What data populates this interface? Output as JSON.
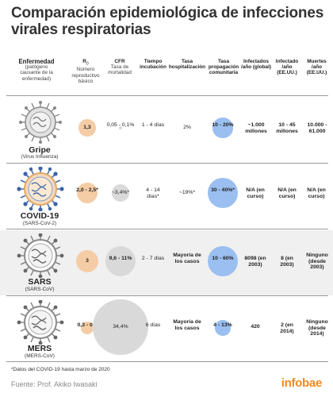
{
  "title": "Comparación epidemiológica de infecciones virales respiratorias",
  "headers": {
    "disease": "Enfermedad",
    "disease_sub": "(patógeno causante de la enfermedad)",
    "r0": "R",
    "r0_subscript": "0",
    "r0_sub": "Número reproductivo básico",
    "cfr": "CFR",
    "cfr_sub": "Tasa de mortalidad",
    "incubation": "Tiempo incubación",
    "hosp": "Tasa hospitalización",
    "community": "Tasa propagación comunitaria",
    "infected_global": "Infectados /año (global)",
    "infected_us": "Infectado /año (EE.UU.)",
    "deaths_us": "Muertes /año (EE.UU.)"
  },
  "rows": [
    {
      "name": "Gripe",
      "pathogen": "(Virus Influenza)",
      "r0": "1,3",
      "cfr": "0,05 - 0,1%",
      "incubation": "1 - 4 días",
      "hosp": "2%",
      "community": "10 - 20%",
      "infected_global": "~1.000 millones",
      "infected_us": "10 - 45 millones",
      "deaths_us": "10.000 - 61.000",
      "r0_value": 1.3,
      "cfr_value": 0.075,
      "community_value": 15
    },
    {
      "name": "COVID-19",
      "pathogen": "(SARS-CoV-2)",
      "r0": "2,0 - 2,5*",
      "cfr": "~3,4%*",
      "incubation": "4 - 14 días*",
      "hosp": "~19%*",
      "community": "30 - 40%*",
      "infected_global": "N/A (en curso)",
      "infected_us": "N/A (en curso)",
      "deaths_us": "N/A (en curso)",
      "r0_value": 2.25,
      "cfr_value": 3.4,
      "community_value": 35
    },
    {
      "name": "SARS",
      "pathogen": "(SARS-CoV)",
      "r0": "3",
      "cfr": "9,6 - 11%",
      "incubation": "2 - 7 días",
      "hosp": "Mayoría de los casos",
      "community": "10 - 60%",
      "infected_global": "8098 (en 2003)",
      "infected_us": "8 (en 2003)",
      "deaths_us": "Ninguno (desde 2003)",
      "r0_value": 3,
      "cfr_value": 10.3,
      "community_value": 35
    },
    {
      "name": "MERS",
      "pathogen": "(MERS-CoV)",
      "r0": "0,3 - 0,8",
      "cfr": "34,4%",
      "incubation": "6 días",
      "hosp": "Mayoría de los casos",
      "community": "4 - 13%",
      "infected_global": "420",
      "infected_us": "2 (en 2014)",
      "deaths_us": "Ninguno (desde 2014)",
      "r0_value": 0.55,
      "cfr_value": 34.4,
      "community_value": 8.5
    }
  ],
  "footnote": "*Datos del COVID-19 hasta marzo de 2020",
  "source": "Fuente: Prof. Akiko Iwasaki",
  "logo": "infobae",
  "colors": {
    "r0_circle": "#f4cca5",
    "cfr_circle": "#d9d9d9",
    "community_circle": "#9bbff0",
    "logo": "#f28a1e"
  }
}
